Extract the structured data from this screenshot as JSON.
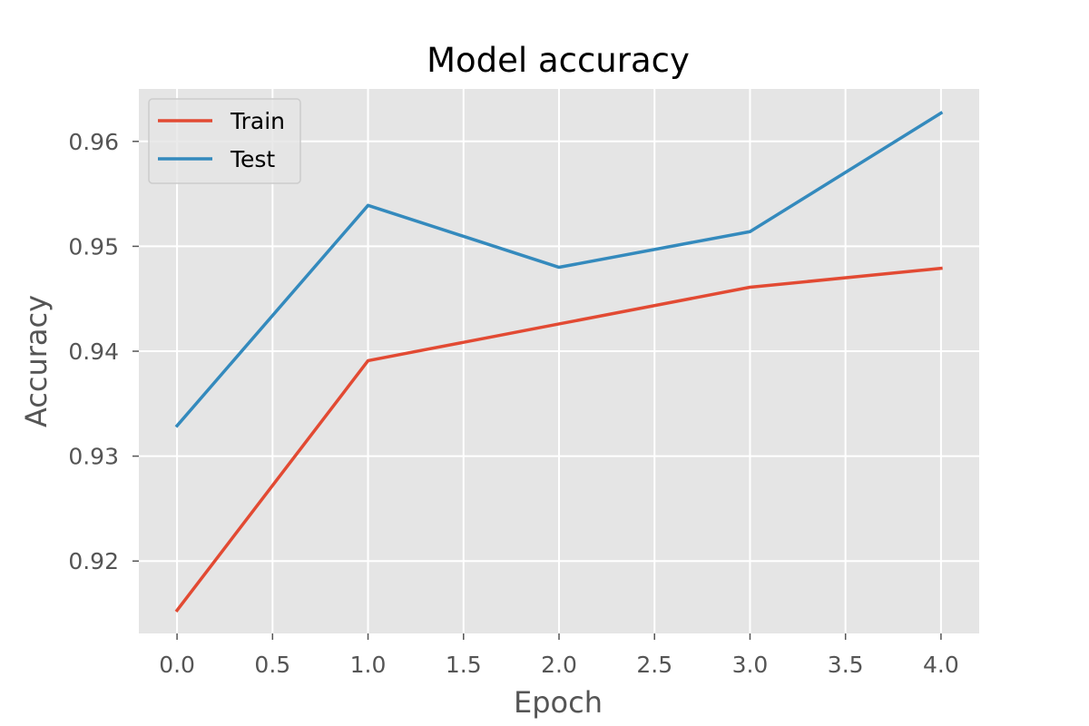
{
  "chart_data": {
    "type": "line",
    "title": "Model accuracy",
    "xlabel": "Epoch",
    "ylabel": "Accuracy",
    "x": [
      0,
      1,
      2,
      3,
      4
    ],
    "xlim": [
      -0.2,
      4.2
    ],
    "ylim": [
      0.9131,
      0.965
    ],
    "xticks": [
      0.0,
      0.5,
      1.0,
      1.5,
      2.0,
      2.5,
      3.0,
      3.5,
      4.0
    ],
    "xtick_labels": [
      "0.0",
      "0.5",
      "1.0",
      "1.5",
      "2.0",
      "2.5",
      "3.0",
      "3.5",
      "4.0"
    ],
    "yticks": [
      0.92,
      0.93,
      0.94,
      0.95,
      0.96
    ],
    "ytick_labels": [
      "0.92",
      "0.93",
      "0.94",
      "0.95",
      "0.96"
    ],
    "grid": true,
    "legend_position": "top-left",
    "series": [
      {
        "name": "Train",
        "color": "#e24a33",
        "values": [
          0.9153,
          0.9391,
          0.9426,
          0.9461,
          0.9479
        ]
      },
      {
        "name": "Test",
        "color": "#348abd",
        "values": [
          0.9329,
          0.9539,
          0.948,
          0.9514,
          0.9627
        ]
      }
    ],
    "colors": {
      "plot_background": "#e5e5e5",
      "grid": "#ffffff",
      "tick_text": "#555555"
    }
  }
}
